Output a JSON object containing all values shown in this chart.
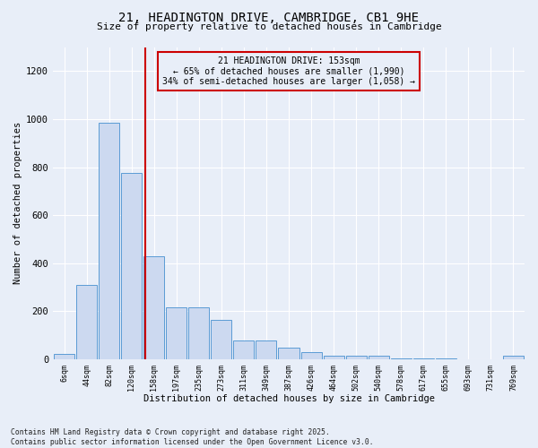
{
  "title_line1": "21, HEADINGTON DRIVE, CAMBRIDGE, CB1 9HE",
  "title_line2": "Size of property relative to detached houses in Cambridge",
  "xlabel": "Distribution of detached houses by size in Cambridge",
  "ylabel": "Number of detached properties",
  "categories": [
    "6sqm",
    "44sqm",
    "82sqm",
    "120sqm",
    "158sqm",
    "197sqm",
    "235sqm",
    "273sqm",
    "311sqm",
    "349sqm",
    "387sqm",
    "426sqm",
    "464sqm",
    "502sqm",
    "540sqm",
    "578sqm",
    "617sqm",
    "655sqm",
    "693sqm",
    "731sqm",
    "769sqm"
  ],
  "values": [
    22,
    308,
    985,
    775,
    430,
    215,
    215,
    165,
    78,
    78,
    48,
    30,
    15,
    15,
    14,
    5,
    5,
    5,
    0,
    0,
    14
  ],
  "bar_color": "#ccd9f0",
  "bar_edge_color": "#5b9bd5",
  "vline_x": 3.62,
  "vline_color": "#cc0000",
  "annotation_title": "21 HEADINGTON DRIVE: 153sqm",
  "annotation_line2": "← 65% of detached houses are smaller (1,990)",
  "annotation_line3": "34% of semi-detached houses are larger (1,058) →",
  "annotation_box_color": "#cc0000",
  "ylim": [
    0,
    1300
  ],
  "yticks": [
    0,
    200,
    400,
    600,
    800,
    1000,
    1200
  ],
  "background_color": "#e8eef8",
  "grid_color": "#ffffff",
  "footer_line1": "Contains HM Land Registry data © Crown copyright and database right 2025.",
  "footer_line2": "Contains public sector information licensed under the Open Government Licence v3.0."
}
